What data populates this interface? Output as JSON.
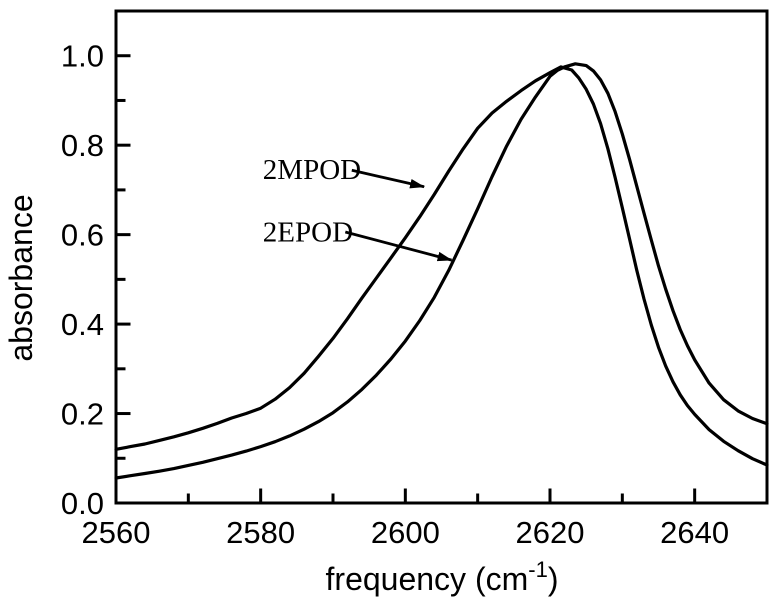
{
  "figure": {
    "background_color": "#ffffff",
    "foreground_color": "#000000",
    "description": "Black-and-white IR absorbance spectra of 2MPOD and 2EPOD"
  },
  "chart_data": {
    "type": "line",
    "title": "",
    "xlabel": "frequency (cm⁻¹)",
    "xlabel_parts": {
      "pre": "frequency (cm",
      "sup": "-1",
      "post": ")"
    },
    "ylabel": "absorbance",
    "xlim": [
      2560,
      2650
    ],
    "ylim": [
      0,
      1.1
    ],
    "x_ticks_major": [
      2560,
      2580,
      2600,
      2620,
      2640
    ],
    "x_tick_labels": [
      "2560",
      "2580",
      "2600",
      "2620",
      "2640"
    ],
    "x_ticks_minor": [
      2570,
      2590,
      2610,
      2630,
      2650
    ],
    "y_ticks_major": [
      0.0,
      0.2,
      0.4,
      0.6,
      0.8,
      1.0
    ],
    "y_tick_labels": [
      "0.0",
      "0.2",
      "0.4",
      "0.6",
      "0.8",
      "1.0"
    ],
    "y_ticks_minor": [
      0.1,
      0.3,
      0.5,
      0.7,
      0.9
    ],
    "grid": false,
    "legend_position": "none",
    "line_color": "#000000",
    "series": [
      {
        "name": "2MPOD",
        "peak_x": 2621.5,
        "peak_y": 0.975,
        "points": [
          [
            2560,
            0.12
          ],
          [
            2562,
            0.126
          ],
          [
            2564,
            0.132
          ],
          [
            2566,
            0.14
          ],
          [
            2568,
            0.148
          ],
          [
            2570,
            0.157
          ],
          [
            2572,
            0.167
          ],
          [
            2574,
            0.178
          ],
          [
            2576,
            0.19
          ],
          [
            2578,
            0.2
          ],
          [
            2580,
            0.212
          ],
          [
            2582,
            0.232
          ],
          [
            2584,
            0.258
          ],
          [
            2586,
            0.29
          ],
          [
            2588,
            0.328
          ],
          [
            2590,
            0.368
          ],
          [
            2592,
            0.412
          ],
          [
            2594,
            0.458
          ],
          [
            2596,
            0.503
          ],
          [
            2598,
            0.548
          ],
          [
            2600,
            0.593
          ],
          [
            2602,
            0.64
          ],
          [
            2604,
            0.69
          ],
          [
            2606,
            0.742
          ],
          [
            2608,
            0.792
          ],
          [
            2610,
            0.838
          ],
          [
            2612,
            0.872
          ],
          [
            2614,
            0.898
          ],
          [
            2616,
            0.922
          ],
          [
            2618,
            0.944
          ],
          [
            2620,
            0.962
          ],
          [
            2621.5,
            0.975
          ],
          [
            2623,
            0.968
          ],
          [
            2624,
            0.95
          ],
          [
            2625,
            0.925
          ],
          [
            2626,
            0.892
          ],
          [
            2627,
            0.848
          ],
          [
            2628,
            0.792
          ],
          [
            2629,
            0.728
          ],
          [
            2630,
            0.66
          ],
          [
            2631,
            0.59
          ],
          [
            2632,
            0.52
          ],
          [
            2633,
            0.456
          ],
          [
            2634,
            0.398
          ],
          [
            2635,
            0.348
          ],
          [
            2636,
            0.306
          ],
          [
            2637,
            0.271
          ],
          [
            2638,
            0.242
          ],
          [
            2639,
            0.218
          ],
          [
            2640,
            0.198
          ],
          [
            2642,
            0.164
          ],
          [
            2644,
            0.138
          ],
          [
            2646,
            0.117
          ],
          [
            2648,
            0.099
          ],
          [
            2650,
            0.085
          ]
        ]
      },
      {
        "name": "2EPOD",
        "peak_x": 2623.5,
        "peak_y": 0.982,
        "points": [
          [
            2560,
            0.056
          ],
          [
            2562,
            0.061
          ],
          [
            2564,
            0.066
          ],
          [
            2566,
            0.071
          ],
          [
            2568,
            0.077
          ],
          [
            2570,
            0.084
          ],
          [
            2572,
            0.091
          ],
          [
            2574,
            0.099
          ],
          [
            2576,
            0.107
          ],
          [
            2578,
            0.116
          ],
          [
            2580,
            0.126
          ],
          [
            2582,
            0.137
          ],
          [
            2584,
            0.15
          ],
          [
            2586,
            0.165
          ],
          [
            2588,
            0.182
          ],
          [
            2590,
            0.202
          ],
          [
            2592,
            0.226
          ],
          [
            2594,
            0.254
          ],
          [
            2596,
            0.286
          ],
          [
            2598,
            0.322
          ],
          [
            2600,
            0.362
          ],
          [
            2602,
            0.408
          ],
          [
            2604,
            0.46
          ],
          [
            2606,
            0.52
          ],
          [
            2608,
            0.588
          ],
          [
            2610,
            0.658
          ],
          [
            2612,
            0.73
          ],
          [
            2614,
            0.798
          ],
          [
            2616,
            0.858
          ],
          [
            2618,
            0.908
          ],
          [
            2620,
            0.954
          ],
          [
            2621,
            0.967
          ],
          [
            2622,
            0.975
          ],
          [
            2623.5,
            0.982
          ],
          [
            2625,
            0.978
          ],
          [
            2626,
            0.966
          ],
          [
            2627,
            0.946
          ],
          [
            2628,
            0.916
          ],
          [
            2629,
            0.875
          ],
          [
            2630,
            0.825
          ],
          [
            2631,
            0.768
          ],
          [
            2632,
            0.708
          ],
          [
            2633,
            0.648
          ],
          [
            2634,
            0.588
          ],
          [
            2635,
            0.53
          ],
          [
            2636,
            0.478
          ],
          [
            2637,
            0.43
          ],
          [
            2638,
            0.388
          ],
          [
            2639,
            0.352
          ],
          [
            2640,
            0.32
          ],
          [
            2642,
            0.268
          ],
          [
            2644,
            0.231
          ],
          [
            2646,
            0.206
          ],
          [
            2648,
            0.189
          ],
          [
            2650,
            0.177
          ]
        ]
      }
    ],
    "annotations": [
      {
        "label": "2MPOD",
        "text_x": 2580.3,
        "text_y": 0.747,
        "arrow_from": [
          2592.6,
          0.744
        ],
        "arrow_to": [
          2602.6,
          0.707
        ]
      },
      {
        "label": "2EPOD",
        "text_x": 2580.3,
        "text_y": 0.607,
        "arrow_from": [
          2591.7,
          0.606
        ],
        "arrow_to": [
          2606.4,
          0.543
        ]
      }
    ]
  }
}
